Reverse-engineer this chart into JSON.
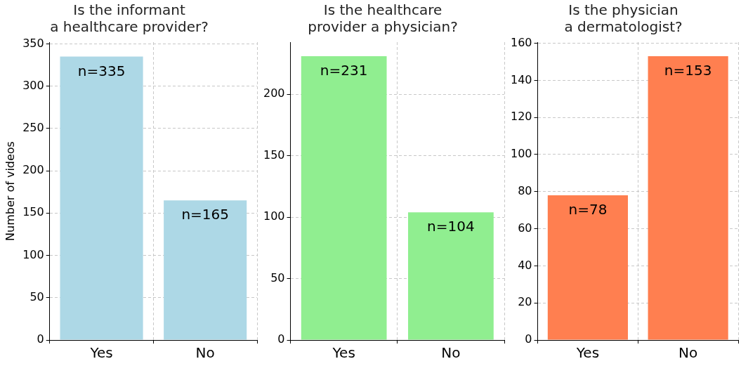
{
  "chart_data": [
    {
      "type": "bar",
      "title": "Is the informant\na healthcare provider?",
      "ylabel": "Number of videos",
      "categories": [
        "Yes",
        "No"
      ],
      "values": [
        335,
        165
      ],
      "value_labels": [
        "n=335",
        "n=165"
      ],
      "color": "#add8e6",
      "ylim": [
        0,
        352
      ],
      "yticks": [
        0,
        50,
        100,
        150,
        200,
        250,
        300,
        350
      ],
      "grid": true
    },
    {
      "type": "bar",
      "title": "Is the healthcare\nprovider a physician?",
      "categories": [
        "Yes",
        "No"
      ],
      "values": [
        231,
        104
      ],
      "value_labels": [
        "n=231",
        "n=104"
      ],
      "color": "#90ee90",
      "ylim": [
        0,
        242.5
      ],
      "yticks": [
        0,
        50,
        100,
        150,
        200
      ],
      "grid": true
    },
    {
      "type": "bar",
      "title": "Is the physician\na dermatologist?",
      "categories": [
        "Yes",
        "No"
      ],
      "values": [
        78,
        153
      ],
      "value_labels": [
        "n=78",
        "n=153"
      ],
      "color": "#ff7f50",
      "ylim": [
        0,
        160.6
      ],
      "yticks": [
        0,
        20,
        40,
        60,
        80,
        100,
        120,
        140,
        160
      ],
      "grid": true
    }
  ]
}
